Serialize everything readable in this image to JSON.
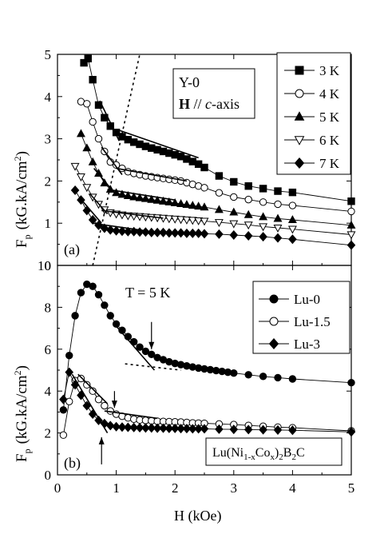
{
  "figure": {
    "ylabel": "F",
    "ylabel_sub": "p",
    "ylabel_units_top": "(kG.kA/cm",
    "ylabel_units_sup": "2",
    "ylabel_units_close": ")",
    "xlabel": "H (kOe)"
  },
  "chart_data": [
    {
      "panel": "(a)",
      "type": "line",
      "xlim": [
        0,
        5
      ],
      "ylim": [
        0,
        5
      ],
      "x_ticks": [
        "0",
        "1",
        "2",
        "3",
        "4",
        "5"
      ],
      "y_ticks": [
        "0",
        "1",
        "2",
        "3",
        "4",
        "5"
      ],
      "annotation": {
        "line1": "Y-0",
        "line2_bold": "H",
        "line2_rest": " // ",
        "line2_italic": "c",
        "line2_end": "-axis"
      },
      "series": [
        {
          "name": "3 K",
          "marker": "square-filled",
          "x": [
            0.45,
            0.52,
            0.6,
            0.7,
            0.8,
            0.9,
            1.0,
            1.1,
            1.2,
            1.3,
            1.4,
            1.5,
            1.6,
            1.7,
            1.8,
            1.9,
            2.0,
            2.1,
            2.2,
            2.3,
            2.4,
            2.5,
            2.75,
            3.0,
            3.25,
            3.5,
            3.75,
            4.0,
            5.0
          ],
          "y": [
            4.8,
            4.9,
            4.4,
            3.8,
            3.5,
            3.3,
            3.15,
            3.05,
            2.98,
            2.92,
            2.87,
            2.82,
            2.78,
            2.74,
            2.7,
            2.66,
            2.62,
            2.58,
            2.52,
            2.46,
            2.4,
            2.32,
            2.12,
            1.98,
            1.88,
            1.82,
            1.76,
            1.73,
            1.52
          ]
        },
        {
          "name": "4 K",
          "marker": "circle-open",
          "x": [
            0.4,
            0.5,
            0.6,
            0.7,
            0.8,
            0.9,
            1.0,
            1.1,
            1.2,
            1.3,
            1.4,
            1.5,
            1.6,
            1.7,
            1.8,
            1.9,
            2.0,
            2.1,
            2.2,
            2.3,
            2.4,
            2.5,
            2.75,
            3.0,
            3.25,
            3.5,
            3.75,
            4.0,
            5.0
          ],
          "y": [
            3.88,
            3.83,
            3.4,
            3.0,
            2.7,
            2.45,
            2.38,
            2.3,
            2.22,
            2.18,
            2.15,
            2.12,
            2.1,
            2.08,
            2.06,
            2.04,
            2.02,
            2.0,
            1.96,
            1.92,
            1.88,
            1.84,
            1.72,
            1.62,
            1.56,
            1.5,
            1.45,
            1.42,
            1.28
          ]
        },
        {
          "name": "5 K",
          "marker": "triangle-up-filled",
          "x": [
            0.4,
            0.5,
            0.6,
            0.7,
            0.8,
            0.9,
            1.0,
            1.1,
            1.2,
            1.3,
            1.4,
            1.5,
            1.6,
            1.7,
            1.8,
            1.9,
            2.0,
            2.1,
            2.2,
            2.3,
            2.4,
            2.5,
            2.75,
            3.0,
            3.25,
            3.5,
            3.75,
            4.0,
            5.0
          ],
          "y": [
            3.12,
            2.78,
            2.45,
            2.18,
            1.95,
            1.8,
            1.72,
            1.68,
            1.65,
            1.62,
            1.6,
            1.58,
            1.56,
            1.54,
            1.52,
            1.5,
            1.48,
            1.46,
            1.44,
            1.42,
            1.4,
            1.38,
            1.32,
            1.26,
            1.2,
            1.15,
            1.11,
            1.08,
            0.95
          ]
        },
        {
          "name": "6 K",
          "marker": "triangle-down-open",
          "x": [
            0.3,
            0.4,
            0.5,
            0.6,
            0.7,
            0.8,
            0.9,
            1.0,
            1.1,
            1.2,
            1.3,
            1.4,
            1.5,
            1.6,
            1.7,
            1.8,
            1.9,
            2.0,
            2.1,
            2.2,
            2.3,
            2.4,
            2.5,
            2.75,
            3.0,
            3.25,
            3.5,
            3.75,
            4.0,
            5.0
          ],
          "y": [
            2.35,
            2.1,
            1.85,
            1.62,
            1.45,
            1.32,
            1.25,
            1.22,
            1.2,
            1.18,
            1.17,
            1.16,
            1.15,
            1.14,
            1.13,
            1.12,
            1.11,
            1.1,
            1.09,
            1.08,
            1.07,
            1.06,
            1.05,
            1.02,
            0.99,
            0.96,
            0.92,
            0.89,
            0.86,
            0.73
          ]
        },
        {
          "name": "7 K",
          "marker": "diamond-filled",
          "x": [
            0.3,
            0.4,
            0.5,
            0.6,
            0.7,
            0.8,
            0.9,
            1.0,
            1.1,
            1.2,
            1.3,
            1.4,
            1.5,
            1.6,
            1.7,
            1.8,
            1.9,
            2.0,
            2.1,
            2.2,
            2.3,
            2.4,
            2.5,
            2.75,
            3.0,
            3.25,
            3.5,
            3.75,
            4.0,
            5.0
          ],
          "y": [
            1.78,
            1.55,
            1.3,
            1.08,
            0.95,
            0.88,
            0.84,
            0.82,
            0.81,
            0.8,
            0.8,
            0.79,
            0.79,
            0.78,
            0.78,
            0.78,
            0.77,
            0.77,
            0.77,
            0.76,
            0.76,
            0.76,
            0.75,
            0.74,
            0.72,
            0.7,
            0.68,
            0.65,
            0.62,
            0.48
          ]
        }
      ],
      "tangent_lines": [
        {
          "x": [
            0.72,
            1.05
          ],
          "y": [
            3.9,
            2.95
          ]
        },
        {
          "x": [
            1.05,
            2.4
          ],
          "y": [
            3.2,
            2.55
          ]
        },
        {
          "x": [
            0.75,
            1.1
          ],
          "y": [
            2.8,
            2.15
          ]
        },
        {
          "x": [
            1.0,
            2.2
          ],
          "y": [
            2.3,
            2.0
          ]
        },
        {
          "x": [
            0.62,
            0.95
          ],
          "y": [
            2.3,
            1.75
          ]
        },
        {
          "x": [
            0.85,
            2.0
          ],
          "y": [
            1.8,
            1.55
          ]
        },
        {
          "x": [
            0.55,
            0.85
          ],
          "y": [
            1.7,
            1.22
          ]
        },
        {
          "x": [
            0.75,
            1.8
          ],
          "y": [
            1.3,
            1.12
          ]
        },
        {
          "x": [
            0.38,
            0.75
          ],
          "y": [
            1.6,
            1.0
          ]
        },
        {
          "x": [
            0.6,
            1.5
          ],
          "y": [
            1.0,
            0.82
          ]
        }
      ],
      "dashed_line": {
        "x": [
          0.6,
          1.4
        ],
        "y": [
          0.0,
          5.0
        ]
      }
    },
    {
      "panel": "(b)",
      "type": "line",
      "xlim": [
        0,
        5
      ],
      "ylim": [
        0,
        10
      ],
      "x_ticks": [
        "0",
        "1",
        "2",
        "3",
        "4",
        "5"
      ],
      "y_ticks": [
        "0",
        "2",
        "4",
        "6",
        "8",
        "10"
      ],
      "annotation": "T = 5 K",
      "compound": {
        "base": "Lu(Ni",
        "sub1": "1-x",
        "mid": "Co",
        "sub2": "x",
        "mid2": ")",
        "sub3": "2",
        "mid3": "B",
        "sub4": "2",
        "end": "C"
      },
      "series": [
        {
          "name": "Lu-0",
          "marker": "circle-filled",
          "x": [
            0.1,
            0.2,
            0.3,
            0.4,
            0.5,
            0.6,
            0.7,
            0.8,
            0.9,
            1.0,
            1.1,
            1.2,
            1.3,
            1.4,
            1.5,
            1.6,
            1.7,
            1.8,
            1.9,
            2.0,
            2.1,
            2.2,
            2.3,
            2.4,
            2.5,
            2.6,
            2.7,
            2.8,
            2.9,
            3.0,
            3.25,
            3.5,
            3.75,
            4.0,
            5.0
          ],
          "y": [
            3.1,
            5.7,
            7.6,
            8.7,
            9.1,
            9.0,
            8.6,
            8.1,
            7.6,
            7.2,
            6.9,
            6.6,
            6.35,
            6.1,
            5.9,
            5.75,
            5.6,
            5.5,
            5.4,
            5.32,
            5.26,
            5.2,
            5.15,
            5.1,
            5.06,
            5.02,
            4.98,
            4.94,
            4.9,
            4.86,
            4.78,
            4.7,
            4.64,
            4.58,
            4.4
          ]
        },
        {
          "name": "Lu-1.5",
          "marker": "circle-open",
          "x": [
            0.1,
            0.2,
            0.3,
            0.4,
            0.5,
            0.6,
            0.7,
            0.8,
            0.9,
            1.0,
            1.1,
            1.2,
            1.3,
            1.4,
            1.5,
            1.6,
            1.7,
            1.8,
            1.9,
            2.0,
            2.1,
            2.2,
            2.3,
            2.4,
            2.5,
            2.75,
            3.0,
            3.25,
            3.5,
            3.75,
            4.0,
            5.0
          ],
          "y": [
            1.9,
            3.5,
            4.5,
            4.6,
            4.3,
            4.0,
            3.6,
            3.3,
            3.05,
            2.9,
            2.8,
            2.72,
            2.66,
            2.62,
            2.6,
            2.58,
            2.56,
            2.55,
            2.54,
            2.53,
            2.52,
            2.5,
            2.48,
            2.47,
            2.46,
            2.43,
            2.4,
            2.36,
            2.32,
            2.28,
            2.25,
            2.1
          ]
        },
        {
          "name": "Lu-3",
          "marker": "diamond-filled",
          "x": [
            0.1,
            0.2,
            0.3,
            0.4,
            0.5,
            0.6,
            0.7,
            0.8,
            0.9,
            1.0,
            1.1,
            1.2,
            1.3,
            1.4,
            1.5,
            1.6,
            1.7,
            1.8,
            1.9,
            2.0,
            2.1,
            2.2,
            2.3,
            2.4,
            2.5,
            2.75,
            3.0,
            3.25,
            3.5,
            3.75,
            4.0,
            5.0
          ],
          "y": [
            3.6,
            4.9,
            4.3,
            3.8,
            3.3,
            2.9,
            2.6,
            2.45,
            2.35,
            2.3,
            2.28,
            2.27,
            2.26,
            2.25,
            2.24,
            2.24,
            2.23,
            2.23,
            2.22,
            2.22,
            2.21,
            2.21,
            2.2,
            2.2,
            2.2,
            2.18,
            2.17,
            2.16,
            2.15,
            2.14,
            2.13,
            2.05
          ]
        }
      ],
      "tangent_lines": [
        {
          "x": [
            1.0,
            1.65
          ],
          "y": [
            7.1,
            5.0
          ]
        },
        {
          "x": [
            0.35,
            0.85
          ],
          "y": [
            4.8,
            3.4
          ]
        },
        {
          "x": [
            0.8,
            1.7
          ],
          "y": [
            3.05,
            2.7
          ]
        },
        {
          "x": [
            0.25,
            0.85
          ],
          "y": [
            4.8,
            2.0
          ]
        }
      ],
      "dashed_segments": [
        {
          "x": [
            1.15,
            2.1
          ],
          "y": [
            5.3,
            5.0
          ]
        },
        {
          "x": [
            0.8,
            1.2
          ],
          "y": [
            2.4,
            2.3
          ]
        }
      ],
      "arrows": [
        {
          "x": 1.6,
          "y_from": 7.3,
          "y_to": 6.0
        },
        {
          "x": 0.97,
          "y_from": 4.0,
          "y_to": 3.2
        },
        {
          "x": 0.75,
          "y_from": 0.5,
          "y_to": 1.8
        }
      ]
    }
  ]
}
